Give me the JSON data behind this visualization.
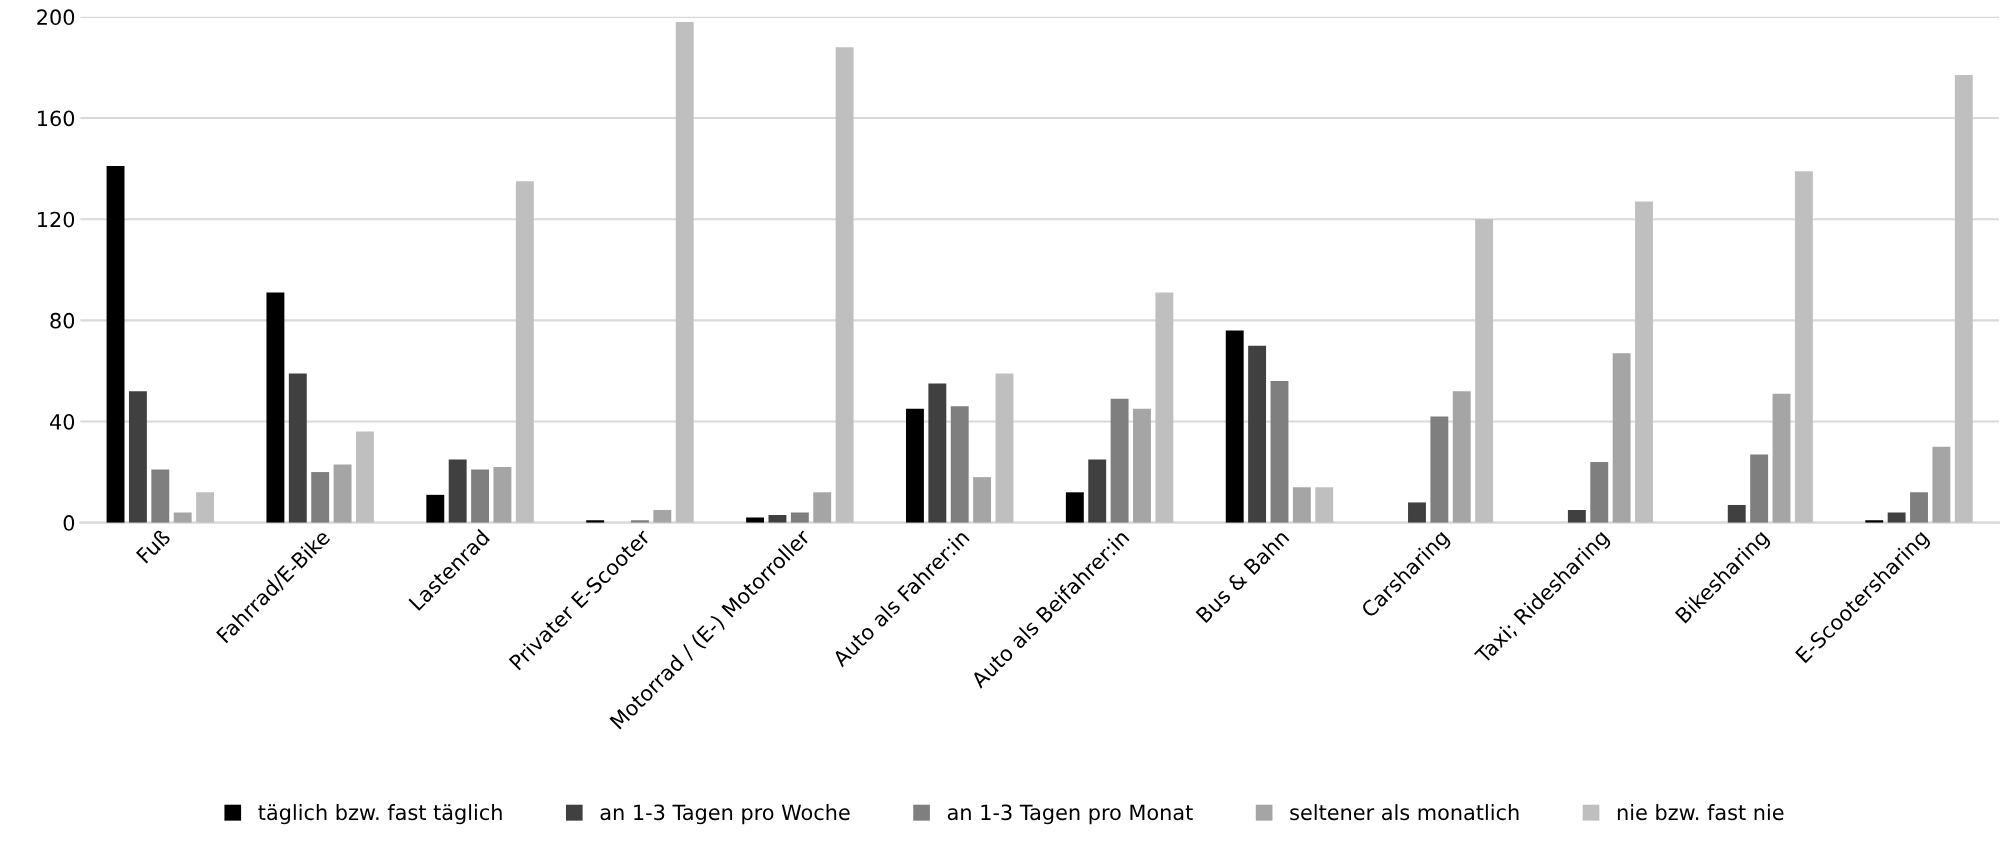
{
  "chart_data": {
    "type": "bar",
    "categories": [
      "Fuß",
      "Fahrrad/E-Bike",
      "Lastenrad",
      "Privater E-Scooter",
      "Motorrad / (E-) Motorroller",
      "Auto als Fahrer:in",
      "Auto als Beifahrer:in",
      "Bus & Bahn",
      "Carsharing",
      "Taxi; Ridesharing",
      "Bikesharing",
      "E-Scootersharing"
    ],
    "series": [
      {
        "name": "täglich bzw. fast täglich",
        "color": "#000000",
        "values": [
          141,
          91,
          11,
          1,
          2,
          45,
          12,
          76,
          0,
          0,
          0,
          1
        ]
      },
      {
        "name": "an 1-3 Tagen pro Woche",
        "color": "#404040",
        "values": [
          52,
          59,
          25,
          0,
          3,
          55,
          25,
          70,
          8,
          5,
          7,
          4
        ]
      },
      {
        "name": "an 1-3 Tagen pro Monat",
        "color": "#7f7f7f",
        "values": [
          21,
          20,
          21,
          1,
          4,
          46,
          49,
          56,
          42,
          24,
          27,
          12
        ]
      },
      {
        "name": "seltener als monatlich",
        "color": "#a5a5a5",
        "values": [
          4,
          23,
          22,
          5,
          12,
          18,
          45,
          14,
          52,
          67,
          51,
          30
        ]
      },
      {
        "name": "nie bzw. fast nie",
        "color": "#bfbfbf",
        "values": [
          12,
          36,
          135,
          198,
          188,
          59,
          91,
          14,
          120,
          127,
          139,
          177
        ]
      }
    ],
    "ylim": [
      0,
      200
    ],
    "yticks": [
      0,
      40,
      80,
      120,
      160,
      200
    ],
    "grid": "y",
    "legend": "bottom"
  }
}
